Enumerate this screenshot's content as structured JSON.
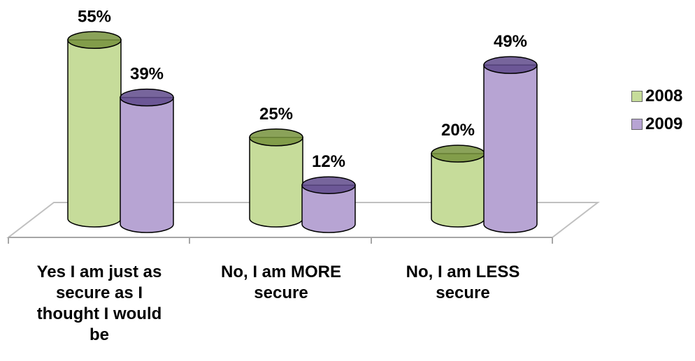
{
  "chart_data": {
    "type": "bar",
    "categories": [
      "Yes I am just as secure as I thought I would be",
      "No, I am MORE secure",
      "No, I am LESS secure"
    ],
    "series": [
      {
        "name": "2008",
        "values": [
          55,
          25,
          20
        ],
        "labels": [
          "55%",
          "25%",
          "20%"
        ],
        "color": "#c6dc9a",
        "edge": "#76923c"
      },
      {
        "name": "2009",
        "values": [
          39,
          12,
          49
        ],
        "labels": [
          "39%",
          "12%",
          "49%"
        ],
        "color": "#b7a4d3",
        "edge": "#5f4a8b"
      }
    ],
    "ylim": [
      0,
      60
    ],
    "value_format": "percent",
    "grid": false,
    "legend_position": "right"
  }
}
